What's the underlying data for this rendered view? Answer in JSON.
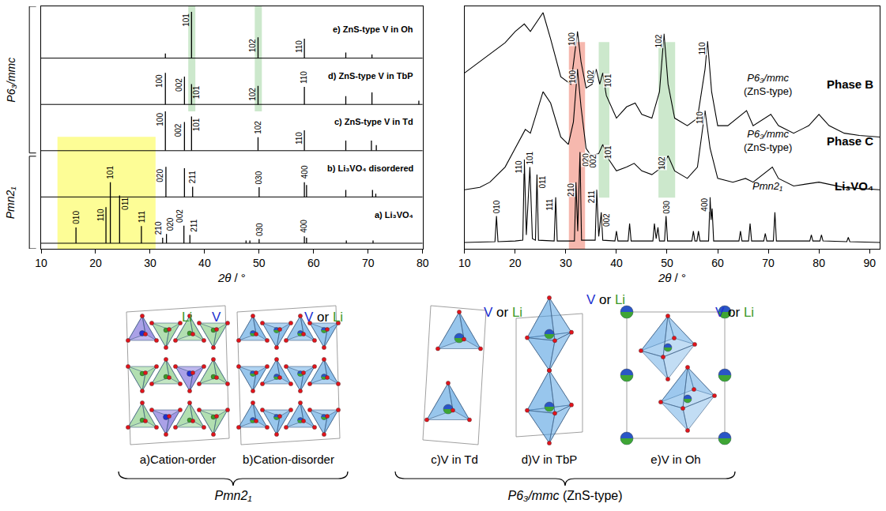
{
  "chart_data": [
    {
      "type": "stick",
      "x_label": "2θ / °",
      "xlim": [
        10,
        80
      ],
      "xticks": [
        10,
        20,
        30,
        40,
        50,
        60,
        70,
        80
      ],
      "tick_labels": "x",
      "groups": [
        {
          "label": "Pmn2₁",
          "series": [
            0,
            1
          ]
        },
        {
          "label": "P6₃/mmc",
          "series": [
            2,
            3,
            4
          ]
        }
      ],
      "highlights": [
        {
          "x": [
            13,
            31
          ],
          "series": [
            0,
            1
          ],
          "color": "#fdfd96"
        },
        {
          "x": [
            37.0,
            38.3
          ],
          "series": [
            3,
            4
          ],
          "color": "#cce8cc"
        },
        {
          "x": [
            49.2,
            50.5
          ],
          "series": [
            3,
            4
          ],
          "color": "#cce8cc"
        }
      ],
      "series": [
        {
          "name": "a) Li₃VO₄",
          "color": "#000000",
          "x": [
            16.4,
            21.9,
            22.7,
            24.4,
            28.4,
            32.3,
            33.0,
            36.2,
            37.3,
            47.6,
            48.3,
            50.0,
            58.3,
            58.7,
            66.0,
            70.9
          ],
          "values": [
            34,
            78,
            132,
            103,
            37,
            12,
            20,
            38,
            18,
            6,
            6,
            9,
            15,
            12,
            6,
            6
          ],
          "labels": [
            "010",
            "110",
            "101",
            "011",
            "111",
            "210",
            "020",
            "002",
            "211",
            null,
            null,
            "030",
            "400",
            null,
            null,
            null
          ]
        },
        {
          "name": "b) Li₃VO₄ disordered",
          "color": "#000000",
          "x": [
            32.9,
            36.3,
            37.8,
            50.0,
            58.3,
            58.7,
            65.9,
            70.8,
            71.4
          ],
          "values": [
            65,
            62,
            22,
            21,
            32,
            26,
            15,
            15,
            7
          ],
          "labels": [
            "020",
            null,
            "211",
            "030",
            "400",
            null,
            null,
            null,
            null
          ]
        },
        {
          "name": "c) ZnS-type V in Td",
          "color": "#000000",
          "x": [
            32.8,
            36.3,
            37.6,
            49.8,
            58.3,
            65.9,
            70.6,
            71.5
          ],
          "values": [
            85,
            62,
            74,
            29,
            44,
            22,
            22,
            12
          ],
          "labels": [
            "100",
            "002",
            "101",
            "102",
            "110",
            null,
            null,
            null
          ]
        },
        {
          "name": "d) ZnS-type V in TbP",
          "color": "#000000",
          "x": [
            32.8,
            36.3,
            37.6,
            49.8,
            58.3,
            65.9,
            70.7,
            79.3
          ],
          "values": [
            68,
            60,
            44,
            40,
            38,
            18,
            26,
            8
          ],
          "labels": [
            "100",
            "002",
            "101",
            "102",
            "110",
            null,
            null,
            null
          ]
        },
        {
          "name": "e) ZnS-type V in Oh",
          "color": "#000000",
          "x": [
            32.8,
            37.6,
            49.8,
            58.3,
            65.9,
            70.7
          ],
          "values": [
            10,
            100,
            45,
            42,
            12,
            8
          ],
          "labels": [
            null,
            "101",
            "102",
            "110",
            null,
            null
          ]
        }
      ]
    },
    {
      "type": "line",
      "x_label": "2θ / °",
      "xlim": [
        10,
        92
      ],
      "xticks": [
        10,
        20,
        30,
        40,
        50,
        60,
        70,
        80,
        90
      ],
      "tick_labels": "x",
      "highlights": [
        {
          "x": [
            30.6,
            33.8
          ],
          "series": [
            0,
            2
          ],
          "color": "#f6b8ae"
        },
        {
          "x": [
            36.5,
            38.6
          ],
          "series": [
            1,
            2
          ],
          "color": "#cce8cc"
        },
        {
          "x": [
            48.3,
            51.6
          ],
          "series": [
            1,
            2
          ],
          "color": "#cce8cc"
        }
      ],
      "series": [
        {
          "name": "Li₃VO₄",
          "space_group": "Pmn2₁",
          "color": "#000000",
          "x": [
            10,
            15,
            16.0,
            16.3,
            16.6,
            20,
            21.5,
            21.8,
            22.2,
            22.9,
            23.4,
            24.0,
            24.3,
            24.6,
            27.7,
            28.0,
            28.3,
            31.7,
            32.0,
            32.35,
            32.8,
            33.1,
            35.8,
            36.1,
            36.5,
            37.0,
            37.3,
            39.7,
            40.0,
            40.3,
            42.3,
            42.6,
            42.9,
            47.2,
            47.5,
            47.85,
            48.2,
            48.5,
            49.5,
            49.8,
            50.1,
            54.9,
            55.2,
            55.5,
            55.9,
            56.2,
            56.5,
            58.2,
            58.5,
            58.7,
            58.9,
            59.2,
            64.2,
            64.5,
            64.8,
            66.1,
            66.4,
            66.7,
            69.1,
            69.4,
            69.7,
            71.0,
            71.3,
            71.6,
            78.2,
            78.5,
            78.8,
            80.2,
            80.5,
            80.8,
            85.5,
            85.8,
            86.1,
            92
          ],
          "values": [
            0,
            1,
            1,
            35,
            1,
            2,
            3,
            110,
            10,
            100,
            5,
            3,
            90,
            3,
            2,
            60,
            2,
            2,
            80,
            15,
            120,
            3,
            3,
            70,
            8,
            40,
            3,
            2,
            15,
            2,
            2,
            25,
            2,
            2,
            25,
            5,
            20,
            2,
            2,
            35,
            2,
            2,
            15,
            2,
            2,
            15,
            2,
            2,
            60,
            30,
            45,
            2,
            2,
            15,
            2,
            2,
            25,
            2,
            2,
            12,
            2,
            2,
            40,
            2,
            2,
            10,
            2,
            2,
            10,
            2,
            1,
            7,
            1,
            0
          ],
          "peak_labels": [
            {
              "x": 16.3,
              "label": "010"
            },
            {
              "x": 21.8,
              "label": "110"
            },
            {
              "x": 22.9,
              "label": "101"
            },
            {
              "x": 24.3,
              "label": "011"
            },
            {
              "x": 28.0,
              "label": "111"
            },
            {
              "x": 32.0,
              "label": "210"
            },
            {
              "x": 32.8,
              "label": "020"
            },
            {
              "x": 36.1,
              "label": "211"
            },
            {
              "x": 37.0,
              "label": "002"
            },
            {
              "x": 49.8,
              "label": "030"
            },
            {
              "x": 58.5,
              "label": "400"
            }
          ]
        },
        {
          "name": "Phase C",
          "space_group": "P6₃/mmc (ZnS-type)",
          "color": "#000000",
          "x": [
            10,
            13,
            15,
            18,
            20,
            22,
            23,
            25.5,
            27,
            29,
            30.5,
            31.5,
            32.3,
            33,
            34,
            35,
            36.5,
            37.3,
            38.5,
            40,
            42,
            43.5,
            45,
            47,
            49,
            50.2,
            51.5,
            54,
            56,
            57.5,
            58.5,
            60,
            63,
            65.5,
            67,
            70.8,
            72,
            75,
            80,
            85,
            92
          ],
          "values": [
            0,
            3,
            10,
            30,
            55,
            80,
            75,
            130,
            115,
            70,
            60,
            90,
            160,
            110,
            55,
            45,
            48,
            60,
            40,
            25,
            30,
            35,
            25,
            20,
            30,
            45,
            25,
            15,
            30,
            105,
            55,
            15,
            10,
            15,
            10,
            30,
            15,
            5,
            10,
            3,
            0
          ],
          "peak_labels": [
            {
              "x": 32.3,
              "label": "100"
            },
            {
              "x": 36.5,
              "label": "002"
            },
            {
              "x": 37.3,
              "label": "101"
            },
            {
              "x": 50.2,
              "label": "102"
            },
            {
              "x": 57.5,
              "label": "110"
            }
          ]
        },
        {
          "name": "Phase B",
          "space_group": "P6₃/mmc (ZnS-type)",
          "color": "#000000",
          "x": [
            10,
            14,
            18,
            20,
            21.8,
            23,
            25.5,
            27,
            29,
            31,
            32.3,
            33,
            34,
            35.2,
            36,
            36.7,
            37.3,
            38,
            40,
            42,
            43.7,
            45,
            47,
            48.5,
            49.4,
            50.2,
            51.5,
            54,
            56,
            57.5,
            58,
            58.8,
            60,
            62,
            65.7,
            67,
            70.5,
            72,
            75,
            78,
            80,
            82,
            85,
            88,
            92
          ],
          "values": [
            85,
            105,
            125,
            140,
            150,
            140,
            165,
            130,
            80,
            70,
            140,
            100,
            65,
            70,
            90,
            70,
            85,
            55,
            25,
            40,
            45,
            30,
            25,
            60,
            137,
            70,
            25,
            15,
            25,
            90,
            127,
            60,
            15,
            15,
            35,
            15,
            30,
            15,
            5,
            15,
            30,
            15,
            5,
            2,
            0
          ],
          "peak_labels": [
            {
              "x": 32.3,
              "label": "100"
            },
            {
              "x": 36.0,
              "label": "002"
            },
            {
              "x": 37.3,
              "label": "101"
            },
            {
              "x": 49.4,
              "label": "102"
            },
            {
              "x": 58.0,
              "label": "110"
            }
          ]
        }
      ]
    }
  ],
  "diagram": {
    "structures": [
      {
        "label": "a)Cation-order",
        "atoms": [
          "Li",
          "V"
        ]
      },
      {
        "label": "b)Cation-disorder",
        "atoms": [
          "V or Li"
        ]
      },
      {
        "label": "c)V in Td",
        "atoms": [
          "V or Li"
        ]
      },
      {
        "label": "d)V in TbP",
        "atoms": [
          "V or Li"
        ]
      },
      {
        "label": "e)V in Oh",
        "atoms": [
          "V or Li"
        ]
      }
    ],
    "groups": [
      {
        "label": "Pmn2₁",
        "structures": [
          0,
          1
        ]
      },
      {
        "label": "P6₃/mmc (ZnS-type)",
        "structures": [
          2,
          3,
          4
        ]
      }
    ],
    "atom_colors": {
      "V": "#2030d0",
      "Li": "#3a9a28"
    }
  }
}
